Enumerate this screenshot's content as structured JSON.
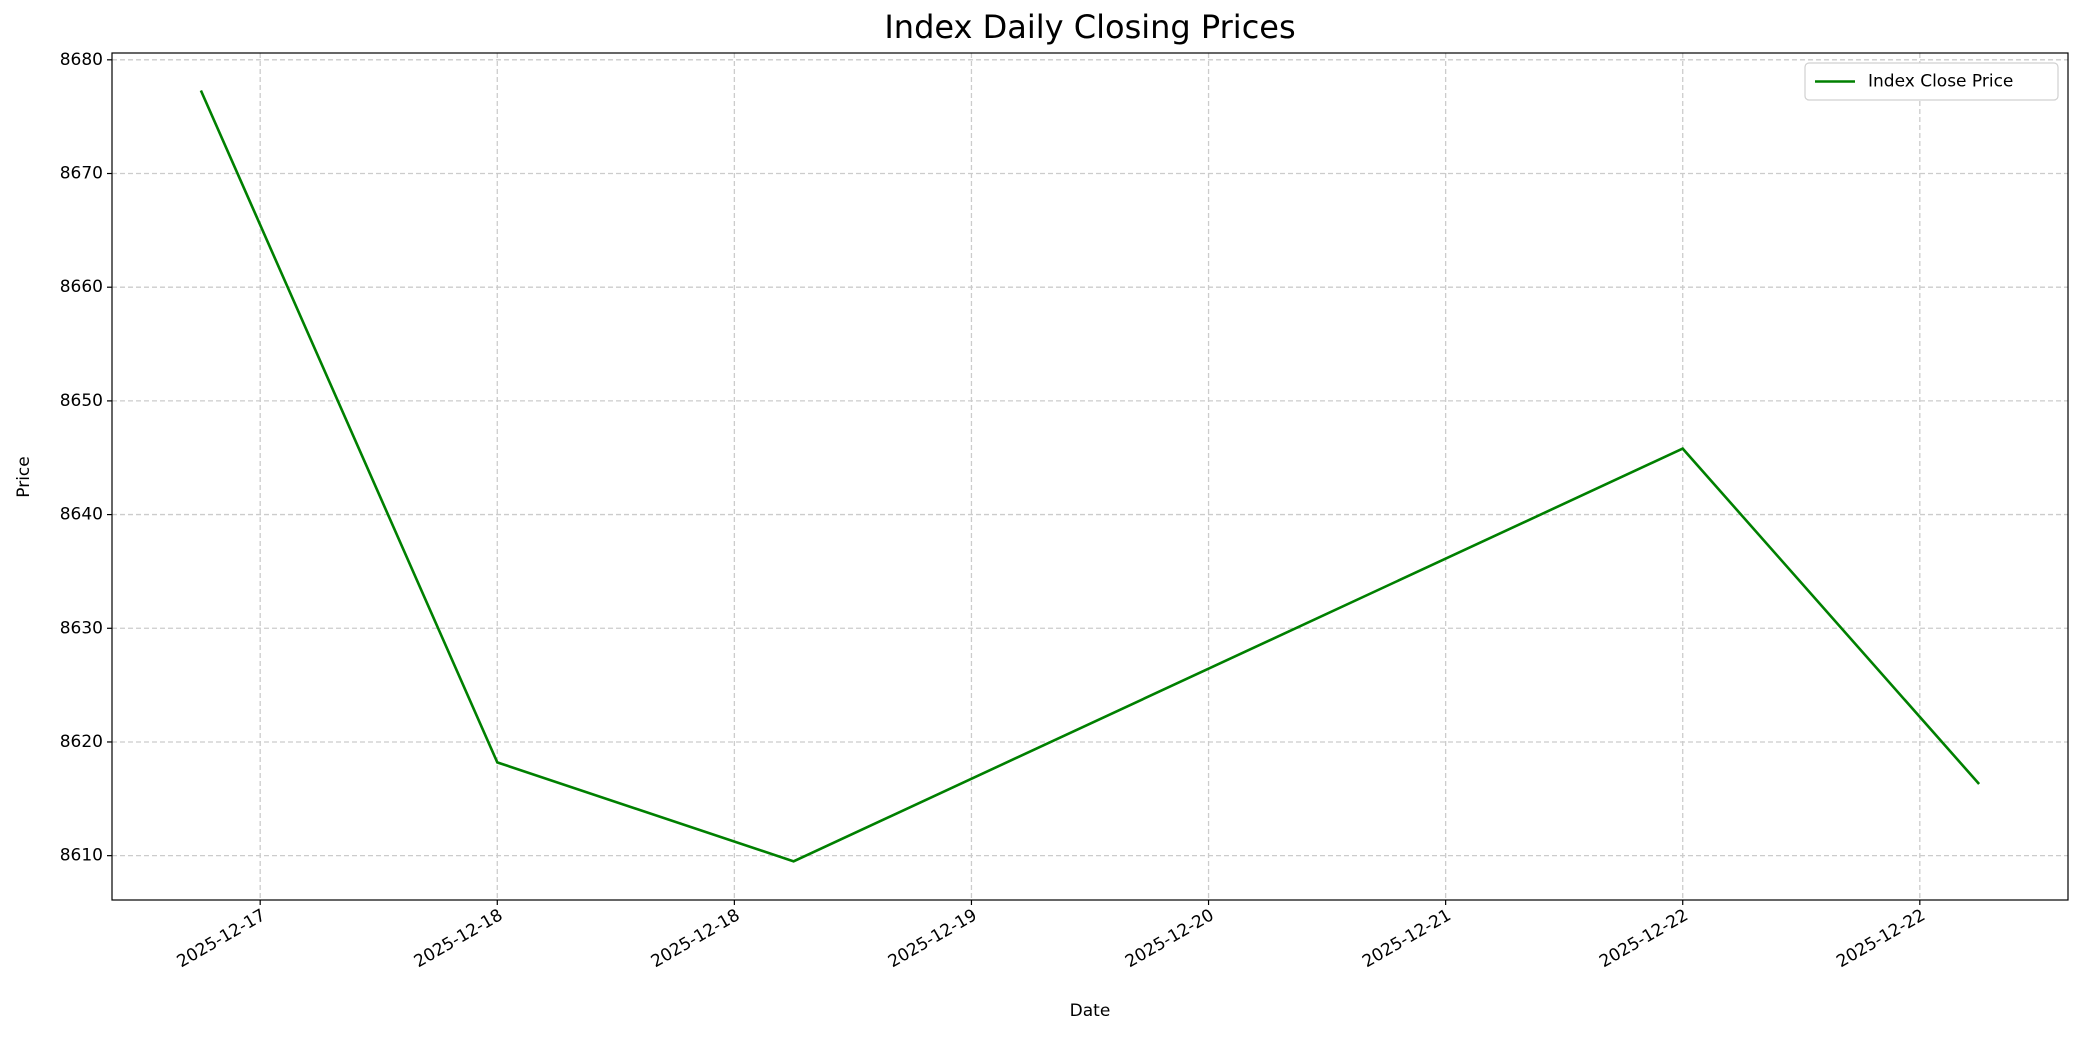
{
  "chart_data": {
    "type": "line",
    "title": "Index Daily Closing Prices",
    "x_label": "Date",
    "y_label": "Price",
    "x": [
      "2025-12-17",
      "2025-12-18",
      "2025-12-19",
      "2025-12-22",
      "2025-12-23"
    ],
    "series": [
      {
        "name": "Index Close Price",
        "color": "#008000",
        "values": [
          8677.3,
          8618.2,
          8609.5,
          8645.8,
          8616.3
        ]
      }
    ],
    "xlim": [
      "2025-12-16T16:48:00Z",
      "2025-12-23T07:12:00Z"
    ],
    "xticks": [
      {
        "value": "2025-12-17T04:48:00Z",
        "label": "2025-12-17"
      },
      {
        "value": "2025-12-18T00:00:00Z",
        "label": "2025-12-18"
      },
      {
        "value": "2025-12-18T19:12:00Z",
        "label": "2025-12-18"
      },
      {
        "value": "2025-12-19T14:24:00Z",
        "label": "2025-12-19"
      },
      {
        "value": "2025-12-20T09:36:00Z",
        "label": "2025-12-20"
      },
      {
        "value": "2025-12-21T04:48:00Z",
        "label": "2025-12-21"
      },
      {
        "value": "2025-12-22T00:00:00Z",
        "label": "2025-12-22"
      },
      {
        "value": "2025-12-22T19:12:00Z",
        "label": "2025-12-22"
      }
    ],
    "ylim": [
      8606.1,
      8680.6
    ],
    "yticks": [
      8610,
      8620,
      8630,
      8640,
      8650,
      8660,
      8670,
      8680
    ],
    "grid": true,
    "legend": "upper right"
  }
}
